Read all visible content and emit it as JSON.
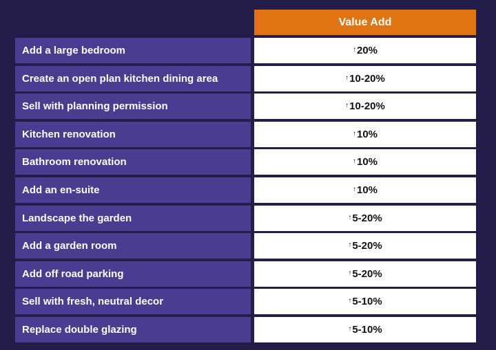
{
  "header": {
    "value_label": "Value Add"
  },
  "rows": [
    {
      "label": "Add a large bedroom",
      "value": "20%"
    },
    {
      "label": "Create an open plan kitchen dining area",
      "value": "10-20%"
    },
    {
      "label": "Sell with planning permission",
      "value": "10-20%"
    },
    {
      "label": "Kitchen renovation",
      "value": "10%"
    },
    {
      "label": "Bathroom renovation",
      "value": "10%"
    },
    {
      "label": "Add an en-suite",
      "value": "10%"
    },
    {
      "label": "Landscape the garden",
      "value": "5-20%"
    },
    {
      "label": "Add a garden room",
      "value": "5-20%"
    },
    {
      "label": "Add off road parking",
      "value": "5-20%"
    },
    {
      "label": "Sell with fresh, neutral decor",
      "value": "5-10%"
    },
    {
      "label": "Replace double glazing",
      "value": "5-10%"
    }
  ],
  "icons": {
    "value_prefix": "arrow-up-icon"
  },
  "colors": {
    "background": "#231d4a",
    "header": "#e07312",
    "label_cell": "#4a3c91",
    "value_cell": "#ffffff"
  }
}
